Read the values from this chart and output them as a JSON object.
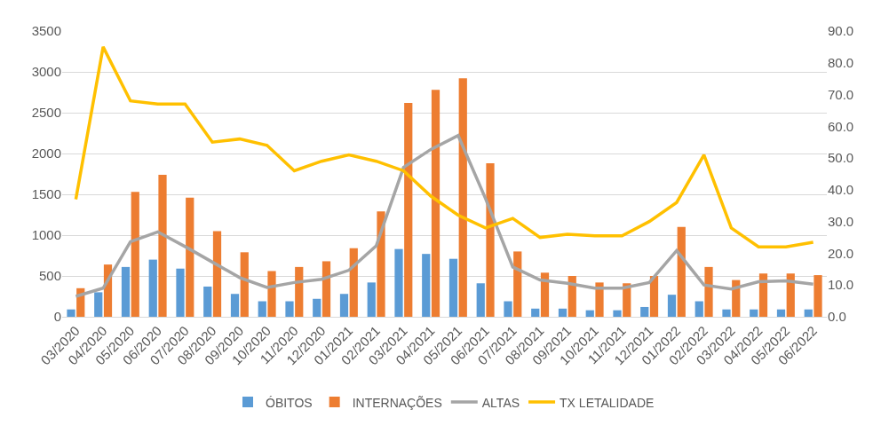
{
  "chart_data": {
    "type": "bar",
    "categories": [
      "03/2020",
      "04/2020",
      "05/2020",
      "06/2020",
      "07/2020",
      "08/2020",
      "09/2020",
      "10/2020",
      "11/2020",
      "12/2020",
      "01/2021",
      "02/2021",
      "03/2021",
      "04/2021",
      "05/2021",
      "06/2021",
      "07/2021",
      "08/2021",
      "09/2021",
      "10/2021",
      "11/2021",
      "12/2021",
      "01/2022",
      "02/2022",
      "03/2022",
      "04/2022",
      "05/2022",
      "06/2022"
    ],
    "series": [
      {
        "name": "ÓBITOS",
        "color": "#5b9bd5",
        "values": [
          90,
          300,
          610,
          700,
          590,
          370,
          280,
          190,
          190,
          220,
          280,
          420,
          830,
          770,
          710,
          410,
          190,
          100,
          100,
          80,
          80,
          120,
          270,
          190,
          90,
          90,
          90,
          90
        ]
      },
      {
        "name": "INTERNAÇÕES",
        "color": "#ed7d31",
        "values": [
          350,
          640,
          1530,
          1740,
          1460,
          1050,
          790,
          560,
          610,
          680,
          840,
          1290,
          2620,
          2780,
          2920,
          1880,
          800,
          540,
          500,
          420,
          410,
          500,
          1100,
          610,
          450,
          530,
          530,
          510
        ]
      },
      {
        "name": "ALTAS",
        "type": "line",
        "color": "#a5a5a5",
        "values": [
          250,
          350,
          920,
          1040,
          860,
          670,
          480,
          360,
          420,
          460,
          570,
          870,
          1830,
          2050,
          2220,
          1450,
          610,
          450,
          410,
          350,
          350,
          420,
          810,
          390,
          340,
          430,
          440,
          400
        ]
      },
      {
        "name": "TX LETALIDADE",
        "type": "line",
        "axis": "y2",
        "color": "#ffc000",
        "values": [
          37,
          85,
          68,
          67,
          67,
          55,
          56,
          54,
          46,
          49,
          51,
          49,
          46,
          38,
          32,
          28,
          31,
          25,
          26,
          25.5,
          25.5,
          30,
          36,
          51,
          28,
          22,
          22,
          23.5
        ]
      }
    ],
    "ylim": [
      0,
      3500
    ],
    "yticks": [
      0,
      500,
      1000,
      1500,
      2000,
      2500,
      3000,
      3500
    ],
    "y2lim": [
      0,
      90
    ],
    "y2ticks": [
      {
        "value": 0,
        "label": "0.0"
      },
      {
        "value": 10,
        "label": "10.0"
      },
      {
        "value": 20,
        "label": "20.0"
      },
      {
        "value": 30,
        "label": "30.0"
      },
      {
        "value": 40,
        "label": "40.0"
      },
      {
        "value": 50,
        "label": "50.0"
      },
      {
        "value": 60,
        "label": "60.0"
      },
      {
        "value": 70,
        "label": "70.0"
      },
      {
        "value": 80,
        "label": "80.0"
      },
      {
        "value": 90,
        "label": "90.0"
      }
    ],
    "grid": "y",
    "legend": "bottom"
  }
}
